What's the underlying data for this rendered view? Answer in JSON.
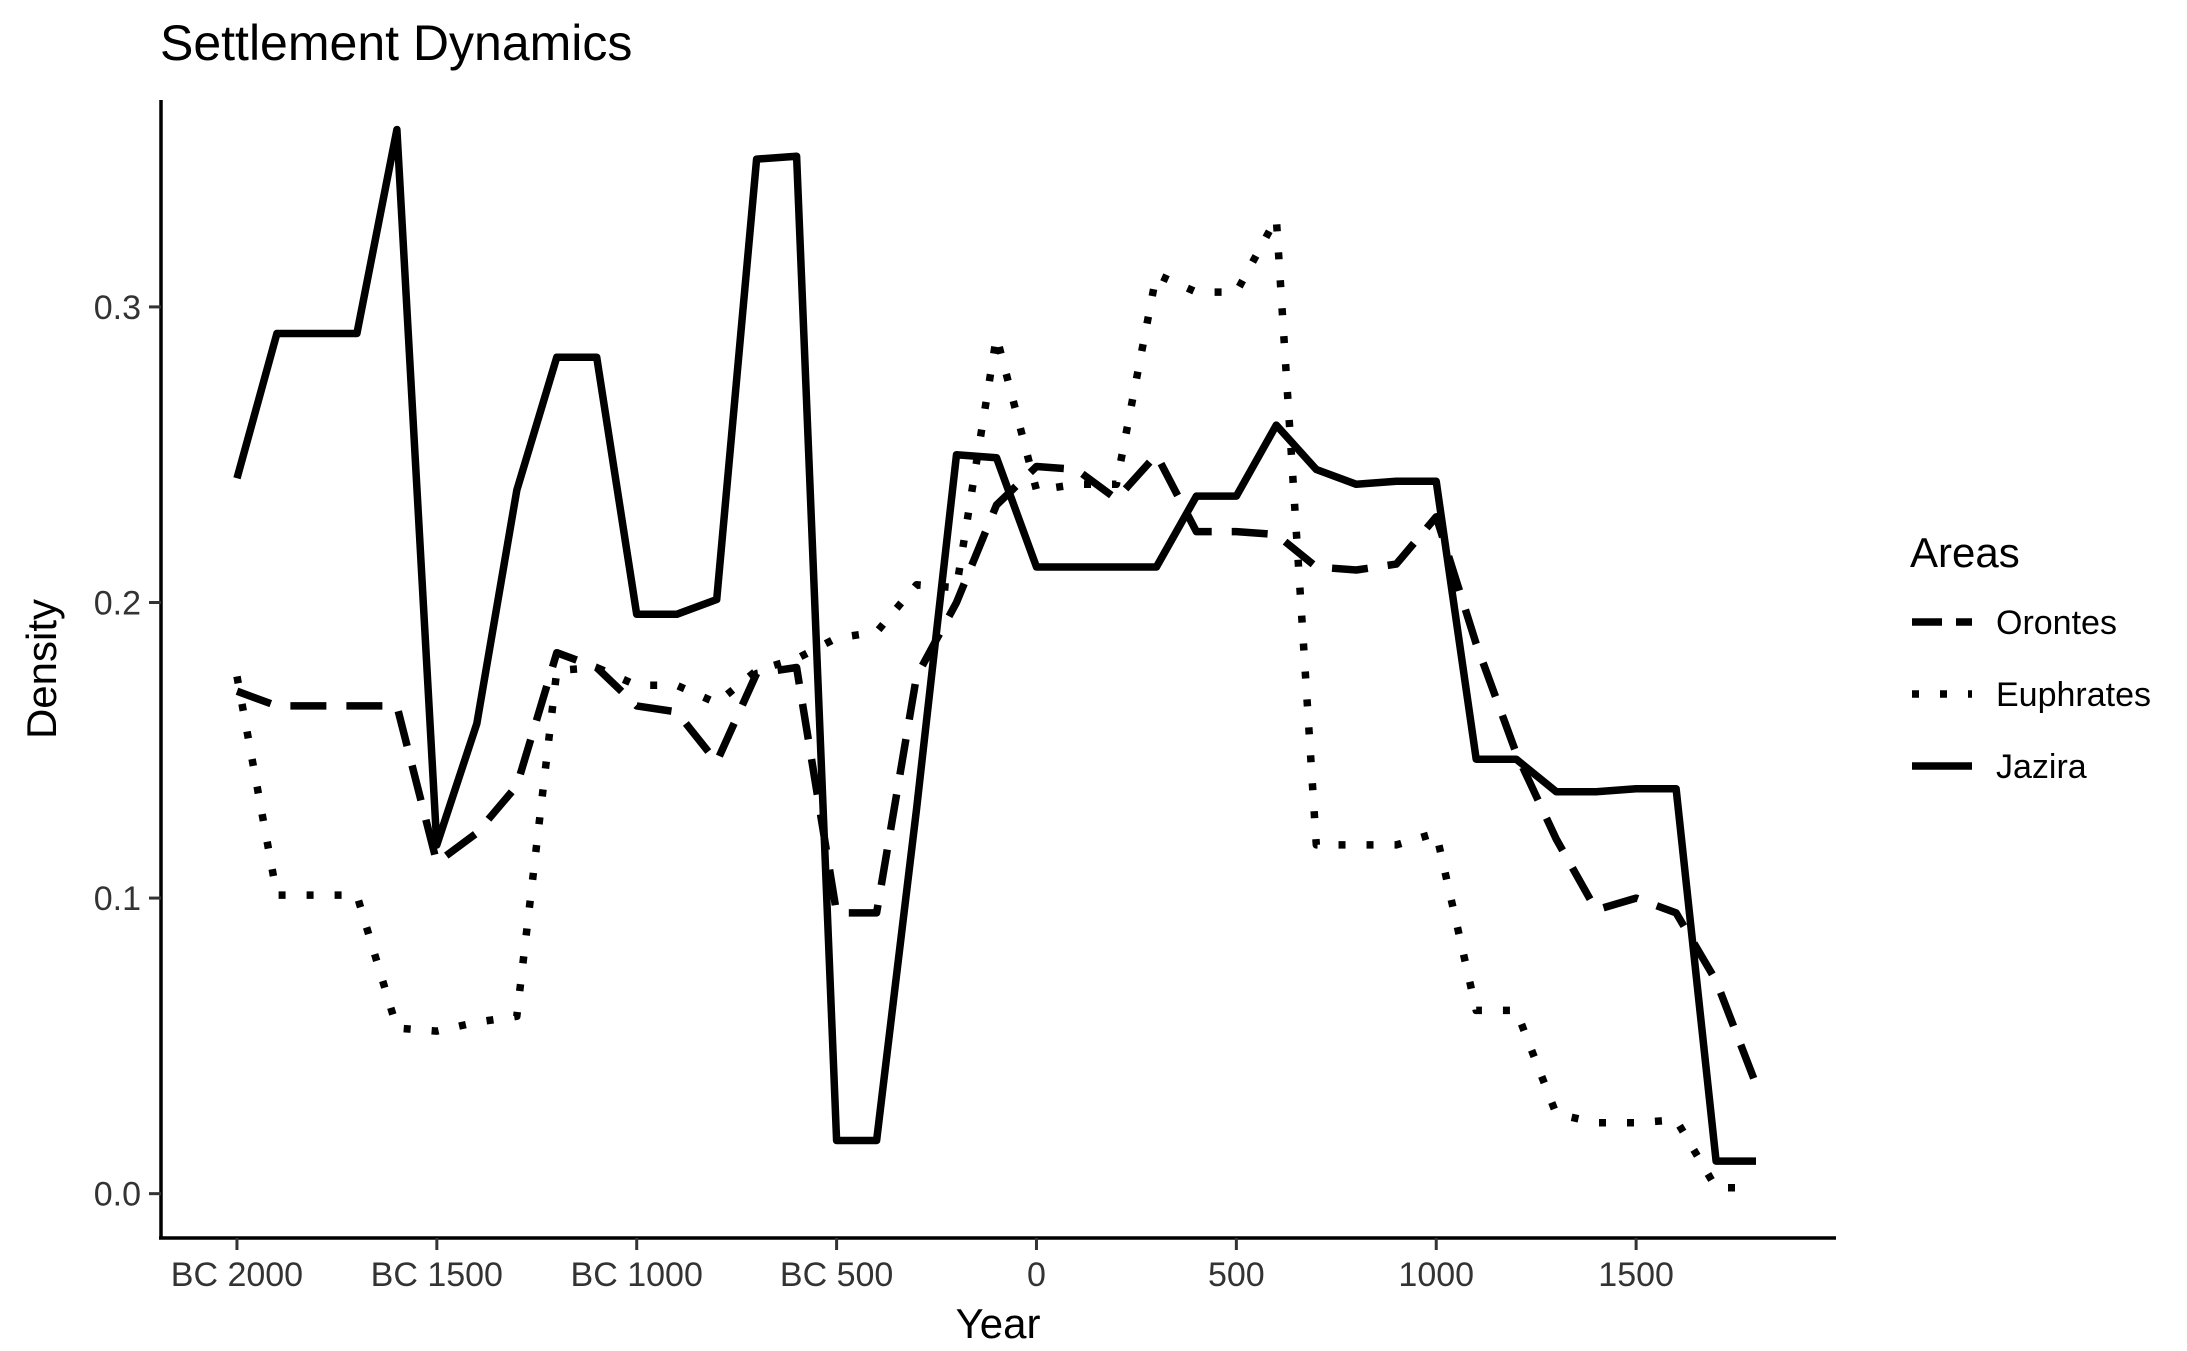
{
  "chart_data": {
    "type": "line",
    "title": "Settlement Dynamics",
    "xlabel": "Year",
    "ylabel": "Density",
    "xlim": [
      -2190,
      2000
    ],
    "ylim": [
      -0.015,
      0.37
    ],
    "x_ticks": [
      {
        "value": -2000,
        "label": "BC 2000"
      },
      {
        "value": -1500,
        "label": "BC 1500"
      },
      {
        "value": -1000,
        "label": "BC 1000"
      },
      {
        "value": -500,
        "label": "BC 500"
      },
      {
        "value": 0,
        "label": "0"
      },
      {
        "value": 500,
        "label": "500"
      },
      {
        "value": 1000,
        "label": "1000"
      },
      {
        "value": 1500,
        "label": "1500"
      }
    ],
    "y_ticks": [
      {
        "value": 0.0,
        "label": "0.0"
      },
      {
        "value": 0.1,
        "label": "0.1"
      },
      {
        "value": 0.2,
        "label": "0.2"
      },
      {
        "value": 0.3,
        "label": "0.3"
      }
    ],
    "grid": false,
    "legend": {
      "title": "Areas",
      "position": "right"
    },
    "series": [
      {
        "name": "Orontes",
        "dash": "dashed",
        "x": [
          -2000,
          -1900,
          -1800,
          -1700,
          -1600,
          -1500,
          -1400,
          -1300,
          -1200,
          -1100,
          -1000,
          -900,
          -800,
          -700,
          -600,
          -500,
          -400,
          -300,
          -200,
          -100,
          0,
          100,
          200,
          300,
          400,
          500,
          600,
          700,
          800,
          900,
          1000,
          1100,
          1200,
          1300,
          1400,
          1500,
          1600,
          1700,
          1800
        ],
        "y": [
          0.17,
          0.165,
          0.165,
          0.165,
          0.165,
          0.112,
          0.122,
          0.138,
          0.183,
          0.178,
          0.165,
          0.163,
          0.146,
          0.176,
          0.178,
          0.095,
          0.095,
          0.175,
          0.2,
          0.233,
          0.246,
          0.245,
          0.235,
          0.25,
          0.224,
          0.224,
          0.223,
          0.212,
          0.211,
          0.213,
          0.229,
          0.186,
          0.149,
          0.12,
          0.096,
          0.1,
          0.095,
          0.072,
          0.037
        ]
      },
      {
        "name": "Euphrates",
        "dash": "dotted",
        "x": [
          -2000,
          -1900,
          -1800,
          -1700,
          -1600,
          -1500,
          -1400,
          -1300,
          -1200,
          -1100,
          -1000,
          -900,
          -800,
          -700,
          -600,
          -500,
          -400,
          -300,
          -200,
          -100,
          0,
          100,
          200,
          300,
          400,
          500,
          600,
          700,
          800,
          900,
          1000,
          1100,
          1200,
          1300,
          1400,
          1500,
          1600,
          1700,
          1800
        ],
        "y": [
          0.175,
          0.101,
          0.101,
          0.101,
          0.056,
          0.055,
          0.058,
          0.06,
          0.177,
          0.178,
          0.172,
          0.172,
          0.166,
          0.177,
          0.181,
          0.188,
          0.19,
          0.206,
          0.205,
          0.29,
          0.238,
          0.24,
          0.24,
          0.311,
          0.305,
          0.305,
          0.33,
          0.118,
          0.118,
          0.118,
          0.122,
          0.062,
          0.062,
          0.027,
          0.024,
          0.024,
          0.025,
          0.002,
          0.002
        ]
      },
      {
        "name": "Jazira",
        "dash": "solid",
        "x": [
          -2000,
          -1900,
          -1800,
          -1700,
          -1600,
          -1500,
          -1400,
          -1300,
          -1200,
          -1100,
          -1000,
          -900,
          -800,
          -700,
          -600,
          -500,
          -400,
          -300,
          -200,
          -100,
          0,
          100,
          200,
          300,
          400,
          500,
          600,
          700,
          800,
          900,
          1000,
          1100,
          1200,
          1300,
          1400,
          1500,
          1600,
          1700,
          1800
        ],
        "y": [
          0.242,
          0.291,
          0.291,
          0.291,
          0.36,
          0.118,
          0.159,
          0.238,
          0.283,
          0.283,
          0.196,
          0.196,
          0.201,
          0.35,
          0.351,
          0.018,
          0.018,
          0.13,
          0.25,
          0.249,
          0.212,
          0.212,
          0.212,
          0.212,
          0.236,
          0.236,
          0.26,
          0.245,
          0.24,
          0.241,
          0.241,
          0.147,
          0.147,
          0.136,
          0.136,
          0.137,
          0.137,
          0.011,
          0.011
        ]
      }
    ]
  }
}
